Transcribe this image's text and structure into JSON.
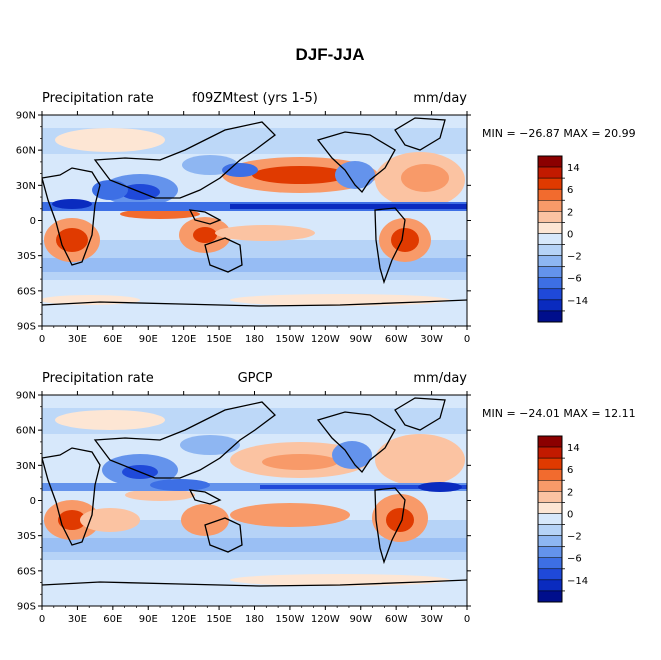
{
  "figure_title": "DJF-JJA",
  "colorbar": {
    "colors": [
      "#8b0000",
      "#c21a00",
      "#e03a00",
      "#f26b2e",
      "#f89a69",
      "#fbc3a2",
      "#fde6d4",
      "#d7e8fb",
      "#b6d3f7",
      "#8eb6f2",
      "#6493ec",
      "#3d6fe5",
      "#1f49d9",
      "#0a2bbf",
      "#000e8c"
    ],
    "labels": [
      "14",
      "6",
      "2",
      "0",
      "-2",
      "-6",
      "-14"
    ],
    "label_display": [
      "14",
      "6",
      "2",
      "0",
      "−2",
      "−6",
      "−14"
    ]
  },
  "axes": {
    "lat_labels": [
      "90N",
      "60N",
      "30N",
      "0",
      "30S",
      "60S",
      "90S"
    ],
    "lon_labels": [
      "0",
      "30E",
      "60E",
      "90E",
      "120E",
      "150E",
      "180",
      "150W",
      "120W",
      "90W",
      "60W",
      "30W",
      "0"
    ]
  },
  "panels": [
    {
      "title_left": "Precipitation rate",
      "title_center": "f09ZMtest (yrs 1-5)",
      "units": "mm/day",
      "stats": "MIN = −26.87 MAX =  20.99",
      "stats_min": -26.87,
      "stats_max": 20.99
    },
    {
      "title_left": "Precipitation rate",
      "title_center": "GPCP",
      "units": "mm/day",
      "stats": "MIN = −24.01 MAX =  12.11",
      "stats_min": -24.01,
      "stats_max": 12.11
    }
  ]
}
